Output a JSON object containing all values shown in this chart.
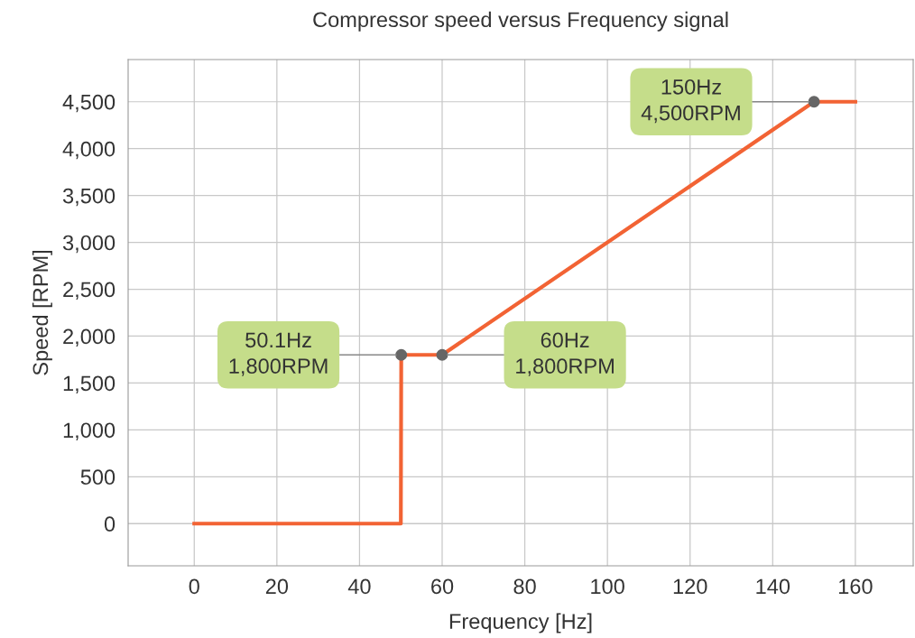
{
  "chart_data": {
    "type": "line",
    "title": "Compressor speed versus Frequency signal",
    "xlabel": "Frequency [Hz]",
    "ylabel": "Speed [RPM]",
    "series": [
      {
        "color": "#f26334",
        "x": [
          0,
          50,
          50.1,
          60,
          150,
          160
        ],
        "values": [
          0,
          0,
          1800,
          1800,
          4500,
          4500
        ]
      },
      {
        "type": "scatter",
        "marker": "circle",
        "color": "#666666",
        "x": [
          50.1,
          60,
          150
        ],
        "values": [
          1800,
          1800,
          4500
        ]
      }
    ],
    "xlim": [
      -16,
      174
    ],
    "ylim": [
      -450,
      4950
    ],
    "xticks": [
      0,
      20,
      40,
      60,
      80,
      100,
      120,
      140,
      160
    ],
    "yticks": [
      0,
      500,
      {
        "value": 1000,
        "label": "1,000"
      },
      {
        "value": 1500,
        "label": "1,500"
      },
      {
        "value": 2000,
        "label": "2,000"
      },
      {
        "value": 2500,
        "label": "2,500"
      },
      {
        "value": 3000,
        "label": "3,000"
      },
      {
        "value": 3500,
        "label": "3,500"
      },
      {
        "value": 4000,
        "label": "4,000"
      },
      {
        "value": 4500,
        "label": "4,500"
      }
    ],
    "annotations": [
      {
        "text": "50.1Hz\n1,800RPM",
        "x": 50.1,
        "y": 1800
      },
      {
        "text": "60Hz\n1,800RPM",
        "x": 60,
        "y": 1800
      },
      {
        "text": "150Hz\n4,500RPM",
        "x": 150,
        "y": 4500
      }
    ],
    "grid": true
  }
}
